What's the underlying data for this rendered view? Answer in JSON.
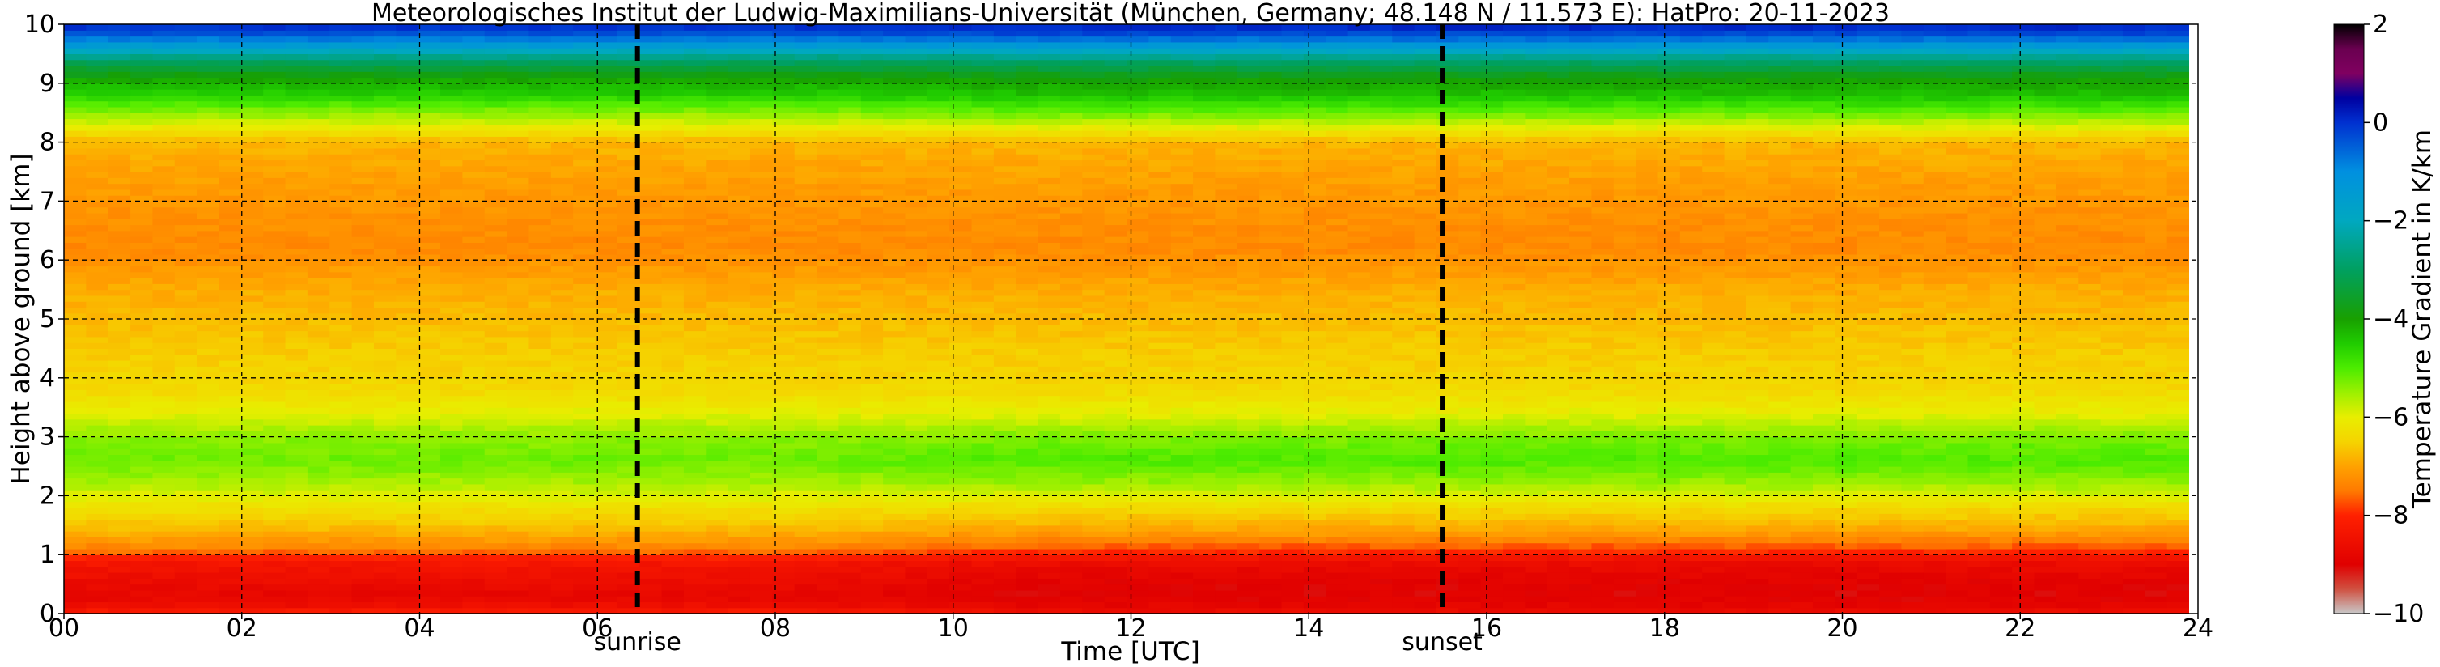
{
  "chart_data": {
    "type": "heatmap",
    "title": "Meteorologisches Institut der Ludwig-Maximilians-Universität (München, Germany; 48.148 N / 11.573 E):    HatPro: 20-11-2023",
    "xlabel": "Time [UTC]",
    "ylabel": "Height above ground [km]",
    "xlim": [
      0,
      24
    ],
    "ylim": [
      0,
      10
    ],
    "x_ticks": [
      0,
      2,
      4,
      6,
      8,
      10,
      12,
      14,
      16,
      18,
      20,
      22,
      24
    ],
    "x_tick_labels": [
      "00",
      "02",
      "04",
      "06",
      "08",
      "10",
      "12",
      "14",
      "16",
      "18",
      "20",
      "22",
      "24"
    ],
    "y_ticks": [
      0,
      1,
      2,
      3,
      4,
      5,
      6,
      7,
      8,
      9,
      10
    ],
    "y_tick_labels": [
      "0",
      "1",
      "2",
      "3",
      "4",
      "5",
      "6",
      "7",
      "8",
      "9",
      "10"
    ],
    "grid": true,
    "events": [
      {
        "name": "sunrise",
        "time": 6.45
      },
      {
        "name": "sunset",
        "time": 15.5
      }
    ],
    "data_end_time": 23.9,
    "colorbar": {
      "label": "Temperature Gradient in K/km",
      "range": [
        -10,
        2
      ],
      "ticks": [
        -10,
        -8,
        -6,
        -4,
        -2,
        0,
        2
      ],
      "tick_labels": [
        "−10",
        "−8",
        "−6",
        "−4",
        "−2",
        "0",
        "2"
      ],
      "colormap": [
        {
          "value": -10.0,
          "color": "#c8c8c8"
        },
        {
          "value": -9.5,
          "color": "#d05040"
        },
        {
          "value": -9.0,
          "color": "#e00000"
        },
        {
          "value": -8.0,
          "color": "#ff2000"
        },
        {
          "value": -7.5,
          "color": "#ff7a00"
        },
        {
          "value": -7.0,
          "color": "#ffa200"
        },
        {
          "value": -6.5,
          "color": "#f5d400"
        },
        {
          "value": -6.0,
          "color": "#e8ee00"
        },
        {
          "value": -5.5,
          "color": "#9cf000"
        },
        {
          "value": -5.0,
          "color": "#4cec00"
        },
        {
          "value": -4.5,
          "color": "#20cc00"
        },
        {
          "value": -4.0,
          "color": "#18a000"
        },
        {
          "value": -3.0,
          "color": "#00a060"
        },
        {
          "value": -2.0,
          "color": "#00a8c0"
        },
        {
          "value": -1.0,
          "color": "#0090e0"
        },
        {
          "value": 0.0,
          "color": "#0030d0"
        },
        {
          "value": 0.5,
          "color": "#0000a0"
        },
        {
          "value": 1.0,
          "color": "#800060"
        },
        {
          "value": 1.5,
          "color": "#6a0050"
        },
        {
          "value": 2.0,
          "color": "#000000"
        }
      ]
    },
    "gradient_profile": {
      "heights_km": [
        0.0,
        0.1,
        0.3,
        0.6,
        0.9,
        1.1,
        1.4,
        1.8,
        2.2,
        2.6,
        3.0,
        3.4,
        3.8,
        4.5,
        5.5,
        6.2,
        6.8,
        7.5,
        8.0,
        8.5,
        8.8,
        9.1,
        9.4,
        9.6,
        9.8,
        10.0
      ],
      "daytime_K_per_km": [
        -8.5,
        -8.8,
        -9.0,
        -8.9,
        -8.6,
        -7.8,
        -7.0,
        -6.4,
        -5.5,
        -5.0,
        -5.3,
        -6.0,
        -6.4,
        -6.6,
        -6.9,
        -7.3,
        -7.2,
        -7.0,
        -6.8,
        -5.2,
        -4.4,
        -3.9,
        -2.8,
        -1.6,
        -0.4,
        0.2
      ],
      "morning_K_per_km": [
        -8.0,
        -8.5,
        -8.8,
        -8.6,
        -8.3,
        -7.4,
        -6.8,
        -6.3,
        -5.6,
        -5.2,
        -5.4,
        -6.0,
        -6.4,
        -6.6,
        -6.9,
        -7.3,
        -7.2,
        -7.0,
        -6.8,
        -5.4,
        -4.6,
        -4.0,
        -2.9,
        -1.7,
        -0.5,
        0.1
      ]
    }
  }
}
